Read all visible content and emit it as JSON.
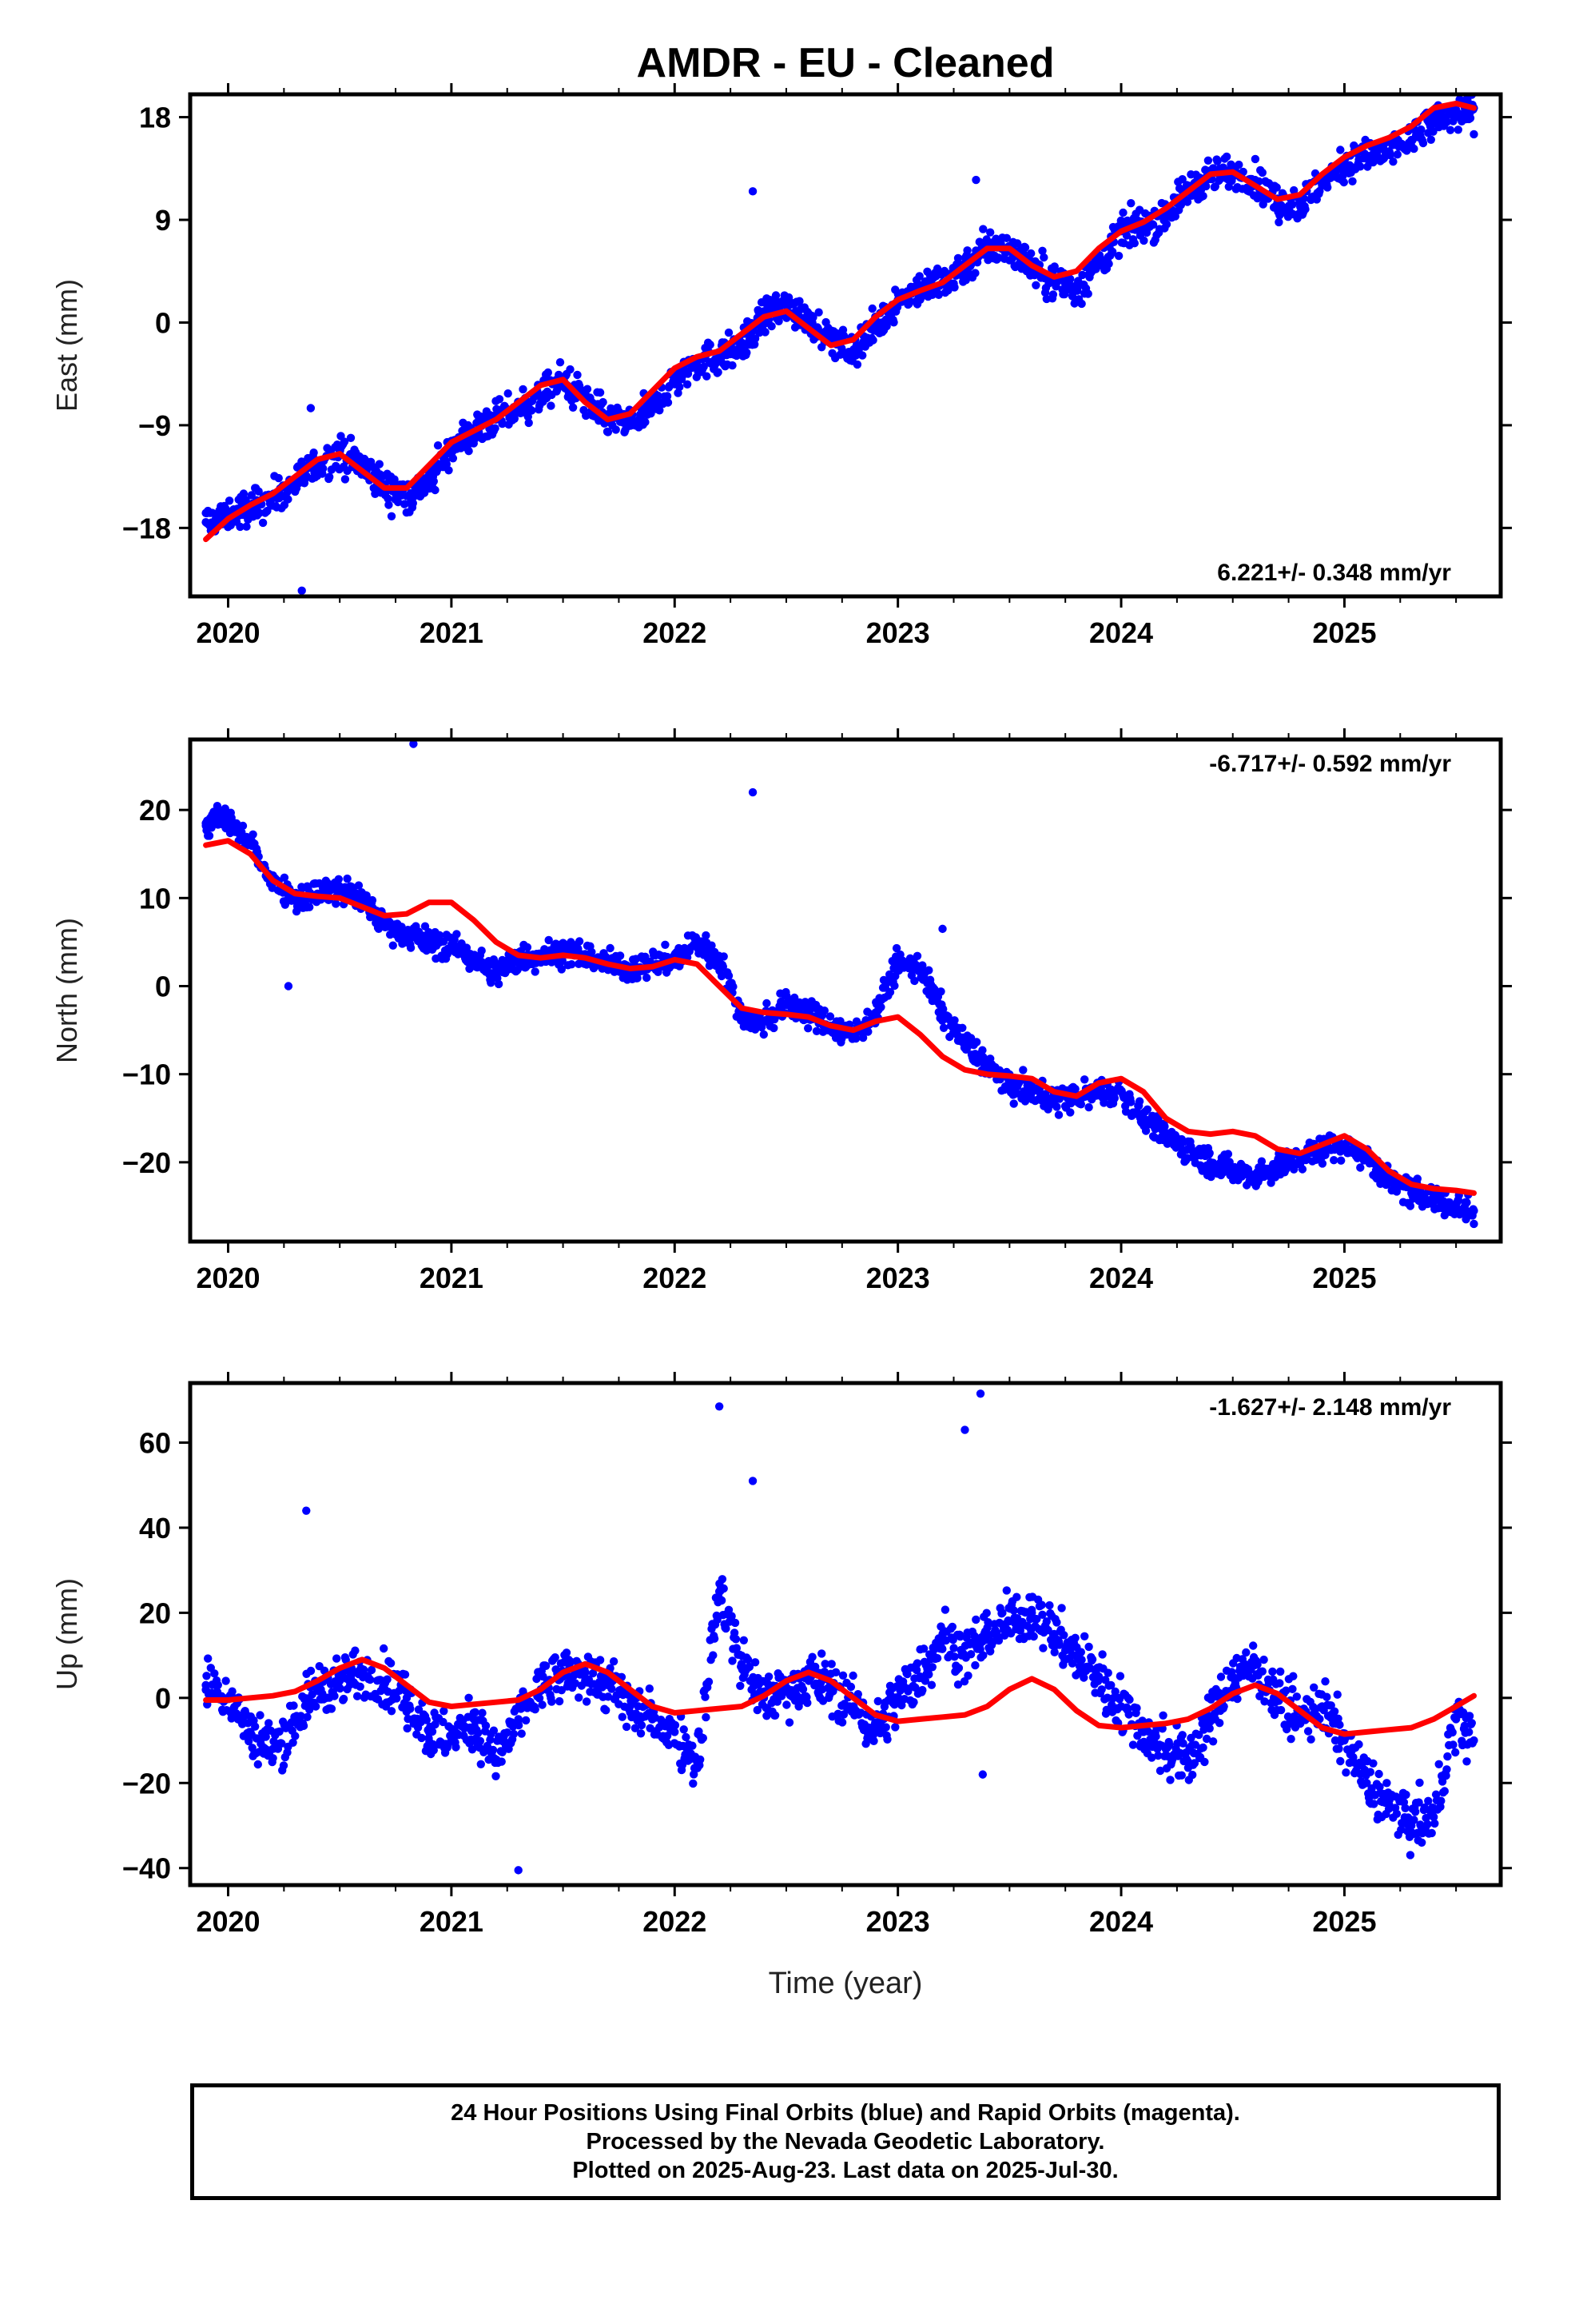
{
  "title": "AMDR  - EU - Cleaned",
  "xlabel": "Time (year)",
  "footer": {
    "line1": "24 Hour Positions Using Final Orbits (blue) and Rapid Orbits (magenta).",
    "line2": "Processed by the Nevada Geodetic Laboratory.",
    "line3": "Plotted on 2025-Aug-23. Last data on 2025-Jul-30."
  },
  "colors": {
    "points": "#0000ff",
    "fit": "#ff0000",
    "frame": "#000000"
  },
  "chart_data": [
    {
      "type": "scatter",
      "ylabel": "East (mm)",
      "rate": "6.221+/- 0.348 mm/yr",
      "rate_position": "bottom-right",
      "xlim": [
        2019.83,
        2025.7
      ],
      "ylim": [
        -24,
        20
      ],
      "xticks": [
        "2020",
        "2021",
        "2022",
        "2023",
        "2024",
        "2025"
      ],
      "yticks": [
        "18",
        "9",
        "0",
        "-9",
        "-18"
      ],
      "ytick_values": [
        18,
        9,
        0,
        -9,
        -18
      ],
      "series": [
        {
          "style": "points",
          "x": [
            2019.9,
            2020.0,
            2020.1,
            2020.2,
            2020.3,
            2020.4,
            2020.5,
            2020.6,
            2020.7,
            2020.8,
            2020.9,
            2021.0,
            2021.1,
            2021.2,
            2021.3,
            2021.4,
            2021.5,
            2021.6,
            2021.7,
            2021.8,
            2021.9,
            2022.0,
            2022.1,
            2022.2,
            2022.3,
            2022.4,
            2022.5,
            2022.6,
            2022.7,
            2022.8,
            2022.9,
            2023.0,
            2023.1,
            2023.2,
            2023.3,
            2023.4,
            2023.5,
            2023.6,
            2023.7,
            2023.8,
            2023.9,
            2024.0,
            2024.1,
            2024.2,
            2024.3,
            2024.4,
            2024.5,
            2024.6,
            2024.7,
            2024.8,
            2024.9,
            2025.0,
            2025.1,
            2025.2,
            2025.3,
            2025.4,
            2025.5,
            2025.58
          ],
          "y": [
            -17.5,
            -17.0,
            -16.2,
            -15.4,
            -14.0,
            -12.5,
            -11.5,
            -12.5,
            -14.5,
            -15.2,
            -14.0,
            -11.0,
            -9.5,
            -8.5,
            -7.5,
            -6.5,
            -5.0,
            -6.8,
            -8.5,
            -9.0,
            -7.5,
            -5.0,
            -3.5,
            -3.0,
            -2.0,
            0.5,
            1.5,
            0.5,
            -1.5,
            -2.5,
            -0.5,
            2.0,
            3.0,
            3.5,
            5.0,
            6.5,
            6.5,
            5.0,
            3.5,
            3.0,
            5.0,
            8.0,
            8.5,
            9.5,
            11.5,
            13.0,
            13.2,
            12.5,
            10.5,
            10.5,
            12.0,
            14.0,
            14.5,
            15.0,
            16.0,
            17.5,
            18.5,
            18.8
          ]
        },
        {
          "style": "outliers",
          "x": [
            2020.33,
            2020.37,
            2022.35,
            2023.35,
            2025.58
          ],
          "y": [
            -23.5,
            -7.5,
            11.5,
            12.5,
            16.5
          ]
        },
        {
          "style": "fit",
          "x": [
            2019.9,
            2020.0,
            2020.1,
            2020.2,
            2020.3,
            2020.4,
            2020.5,
            2020.6,
            2020.7,
            2020.8,
            2020.9,
            2021.0,
            2021.1,
            2021.2,
            2021.3,
            2021.4,
            2021.5,
            2021.6,
            2021.7,
            2021.8,
            2021.9,
            2022.0,
            2022.1,
            2022.2,
            2022.3,
            2022.4,
            2022.5,
            2022.6,
            2022.7,
            2022.8,
            2022.9,
            2023.0,
            2023.1,
            2023.2,
            2023.3,
            2023.4,
            2023.5,
            2023.6,
            2023.7,
            2023.8,
            2023.9,
            2024.0,
            2024.1,
            2024.2,
            2024.3,
            2024.4,
            2024.5,
            2024.6,
            2024.7,
            2024.8,
            2024.9,
            2025.0,
            2025.1,
            2025.2,
            2025.3,
            2025.4,
            2025.5,
            2025.58
          ],
          "y": [
            -19.0,
            -17.2,
            -16.0,
            -15.0,
            -13.5,
            -12.0,
            -11.5,
            -13.0,
            -14.5,
            -14.5,
            -12.5,
            -10.5,
            -9.5,
            -8.5,
            -7.0,
            -5.5,
            -5.0,
            -7.0,
            -8.5,
            -8.0,
            -6.0,
            -4.0,
            -3.0,
            -2.5,
            -1.0,
            0.5,
            1.0,
            -0.5,
            -2.0,
            -1.5,
            0.5,
            2.0,
            2.8,
            3.5,
            5.0,
            6.5,
            6.5,
            5.0,
            4.0,
            4.5,
            6.5,
            8.0,
            8.8,
            10.0,
            11.5,
            13.0,
            13.2,
            12.0,
            10.8,
            11.2,
            13.0,
            14.5,
            15.5,
            16.2,
            17.2,
            18.8,
            19.2,
            18.8
          ]
        }
      ]
    },
    {
      "type": "scatter",
      "ylabel": "North (mm)",
      "rate": "-6.717+/- 0.592 mm/yr",
      "rate_position": "top-right",
      "xlim": [
        2019.83,
        2025.7
      ],
      "ylim": [
        -29,
        28
      ],
      "xticks": [
        "2020",
        "2021",
        "2022",
        "2023",
        "2024",
        "2025"
      ],
      "yticks": [
        "20",
        "10",
        "0",
        "-10",
        "-20"
      ],
      "ytick_values": [
        20,
        10,
        0,
        -10,
        -20
      ],
      "series": [
        {
          "style": "points",
          "x": [
            2019.9,
            2020.0,
            2020.1,
            2020.2,
            2020.3,
            2020.4,
            2020.5,
            2020.6,
            2020.7,
            2020.8,
            2020.9,
            2021.0,
            2021.1,
            2021.2,
            2021.3,
            2021.4,
            2021.5,
            2021.6,
            2021.7,
            2021.8,
            2021.9,
            2022.0,
            2022.1,
            2022.2,
            2022.3,
            2022.4,
            2022.5,
            2022.6,
            2022.7,
            2022.8,
            2022.9,
            2023.0,
            2023.1,
            2023.2,
            2023.3,
            2023.4,
            2023.5,
            2023.6,
            2023.7,
            2023.8,
            2023.9,
            2024.0,
            2024.1,
            2024.2,
            2024.3,
            2024.4,
            2024.5,
            2024.6,
            2024.7,
            2024.8,
            2024.9,
            2025.0,
            2025.1,
            2025.2,
            2025.3,
            2025.4,
            2025.5,
            2025.58
          ],
          "y": [
            18.5,
            19.0,
            16.0,
            12.0,
            10.0,
            10.5,
            11.0,
            10.0,
            7.0,
            6.0,
            5.0,
            4.5,
            3.0,
            1.5,
            3.0,
            3.5,
            4.0,
            3.5,
            2.5,
            2.0,
            2.5,
            3.0,
            5.0,
            3.0,
            -3.5,
            -4.0,
            -2.0,
            -3.0,
            -4.5,
            -5.5,
            -3.0,
            2.5,
            2.0,
            -3.0,
            -6.5,
            -9.0,
            -11.5,
            -12.0,
            -13.0,
            -12.5,
            -12.0,
            -12.0,
            -15.0,
            -17.0,
            -18.5,
            -20.0,
            -21.0,
            -21.5,
            -20.5,
            -19.5,
            -18.5,
            -18.0,
            -19.5,
            -22.0,
            -23.5,
            -24.0,
            -25.0,
            -25.5
          ]
        },
        {
          "style": "outliers",
          "x": [
            2020.27,
            2020.83,
            2022.35,
            2023.2,
            2025.58
          ],
          "y": [
            0.0,
            27.5,
            22.0,
            6.5,
            -27.0
          ]
        },
        {
          "style": "fit",
          "x": [
            2019.9,
            2020.0,
            2020.1,
            2020.2,
            2020.3,
            2020.4,
            2020.5,
            2020.6,
            2020.7,
            2020.8,
            2020.9,
            2021.0,
            2021.1,
            2021.2,
            2021.3,
            2021.4,
            2021.5,
            2021.6,
            2021.7,
            2021.8,
            2021.9,
            2022.0,
            2022.1,
            2022.2,
            2022.3,
            2022.4,
            2022.5,
            2022.6,
            2022.7,
            2022.8,
            2022.9,
            2023.0,
            2023.1,
            2023.2,
            2023.3,
            2023.4,
            2023.5,
            2023.6,
            2023.7,
            2023.8,
            2023.9,
            2024.0,
            2024.1,
            2024.2,
            2024.3,
            2024.4,
            2024.5,
            2024.6,
            2024.7,
            2024.8,
            2024.9,
            2025.0,
            2025.1,
            2025.2,
            2025.3,
            2025.4,
            2025.5,
            2025.58
          ],
          "y": [
            16.0,
            16.5,
            15.0,
            12.0,
            10.5,
            10.2,
            10.0,
            9.0,
            8.0,
            8.2,
            9.5,
            9.5,
            7.5,
            5.0,
            3.5,
            3.2,
            3.5,
            3.2,
            2.5,
            2.0,
            2.2,
            3.0,
            2.5,
            0.0,
            -2.5,
            -3.0,
            -3.2,
            -3.5,
            -4.5,
            -5.0,
            -4.0,
            -3.5,
            -5.5,
            -8.0,
            -9.5,
            -10.0,
            -10.2,
            -10.5,
            -12.0,
            -12.5,
            -11.0,
            -10.5,
            -12.0,
            -15.0,
            -16.5,
            -16.8,
            -16.5,
            -17.0,
            -18.5,
            -19.0,
            -18.0,
            -17.0,
            -18.5,
            -21.0,
            -22.5,
            -23.0,
            -23.2,
            -23.5
          ]
        }
      ]
    },
    {
      "type": "scatter",
      "ylabel": "Up (mm)",
      "rate": "-1.627+/- 2.148 mm/yr",
      "rate_position": "top-right",
      "xlim": [
        2019.83,
        2025.7
      ],
      "ylim": [
        -44,
        74
      ],
      "xticks": [
        "2020",
        "2021",
        "2022",
        "2023",
        "2024",
        "2025"
      ],
      "yticks": [
        "60",
        "40",
        "20",
        "0",
        "-20",
        "-40"
      ],
      "ytick_values": [
        60,
        40,
        20,
        0,
        -20,
        -40
      ],
      "series": [
        {
          "style": "points",
          "x": [
            2019.9,
            2020.0,
            2020.1,
            2020.2,
            2020.3,
            2020.4,
            2020.5,
            2020.6,
            2020.7,
            2020.8,
            2020.9,
            2021.0,
            2021.1,
            2021.2,
            2021.3,
            2021.4,
            2021.5,
            2021.6,
            2021.7,
            2021.8,
            2021.9,
            2022.0,
            2022.1,
            2022.2,
            2022.3,
            2022.4,
            2022.5,
            2022.6,
            2022.7,
            2022.8,
            2022.9,
            2023.0,
            2023.1,
            2023.2,
            2023.3,
            2023.4,
            2023.5,
            2023.6,
            2023.7,
            2023.8,
            2023.9,
            2024.0,
            2024.1,
            2024.2,
            2024.3,
            2024.4,
            2024.5,
            2024.6,
            2024.7,
            2024.8,
            2024.9,
            2025.0,
            2025.1,
            2025.2,
            2025.3,
            2025.4,
            2025.5,
            2025.58
          ],
          "y": [
            3.0,
            0.0,
            -8.0,
            -12.0,
            -5.0,
            2.0,
            4.0,
            6.0,
            4.0,
            0.0,
            -8.0,
            -10.0,
            -5.0,
            -15.0,
            -5.0,
            2.0,
            5.0,
            6.0,
            3.0,
            -2.0,
            -5.0,
            -8.0,
            -15.0,
            25.0,
            8.0,
            0.0,
            2.0,
            5.0,
            3.0,
            -2.0,
            -8.0,
            0.0,
            5.0,
            15.0,
            10.0,
            15.0,
            18.0,
            20.0,
            15.0,
            10.0,
            5.0,
            -2.0,
            -8.0,
            -12.0,
            -15.0,
            -5.0,
            5.0,
            8.0,
            0.0,
            -5.0,
            -2.0,
            -10.0,
            -20.0,
            -25.0,
            -30.0,
            -28.0,
            -5.0,
            -10.0
          ]
        },
        {
          "style": "outliers",
          "x": [
            2020.35,
            2021.3,
            2022.2,
            2022.35,
            2023.3,
            2023.37,
            2023.38
          ],
          "y": [
            44.0,
            -40.5,
            68.5,
            51.0,
            63.0,
            71.5,
            -18.0
          ]
        },
        {
          "style": "fit",
          "x": [
            2019.9,
            2020.0,
            2020.1,
            2020.2,
            2020.3,
            2020.4,
            2020.5,
            2020.6,
            2020.7,
            2020.8,
            2020.9,
            2021.0,
            2021.1,
            2021.2,
            2021.3,
            2021.4,
            2021.5,
            2021.6,
            2021.7,
            2021.8,
            2021.9,
            2022.0,
            2022.1,
            2022.2,
            2022.3,
            2022.4,
            2022.5,
            2022.6,
            2022.7,
            2022.8,
            2022.9,
            2023.0,
            2023.1,
            2023.2,
            2023.3,
            2023.4,
            2023.5,
            2023.6,
            2023.7,
            2023.8,
            2023.9,
            2024.0,
            2024.1,
            2024.2,
            2024.3,
            2024.4,
            2024.5,
            2024.6,
            2024.7,
            2024.8,
            2024.9,
            2025.0,
            2025.1,
            2025.2,
            2025.3,
            2025.4,
            2025.5,
            2025.58
          ],
          "y": [
            -0.5,
            -0.5,
            0.0,
            0.5,
            1.5,
            4.0,
            7.0,
            9.0,
            7.0,
            3.0,
            -1.0,
            -2.0,
            -1.5,
            -1.0,
            -0.5,
            2.0,
            6.0,
            8.0,
            6.0,
            2.0,
            -2.0,
            -3.5,
            -3.0,
            -2.5,
            -2.0,
            0.5,
            4.0,
            6.0,
            4.0,
            0.0,
            -4.0,
            -5.5,
            -5.0,
            -4.5,
            -4.0,
            -2.0,
            2.0,
            4.5,
            2.0,
            -3.0,
            -6.5,
            -7.0,
            -6.5,
            -6.0,
            -5.0,
            -2.5,
            1.0,
            3.0,
            1.0,
            -3.0,
            -7.0,
            -8.5,
            -8.0,
            -7.5,
            -7.0,
            -5.0,
            -2.0,
            0.5
          ]
        }
      ]
    }
  ]
}
